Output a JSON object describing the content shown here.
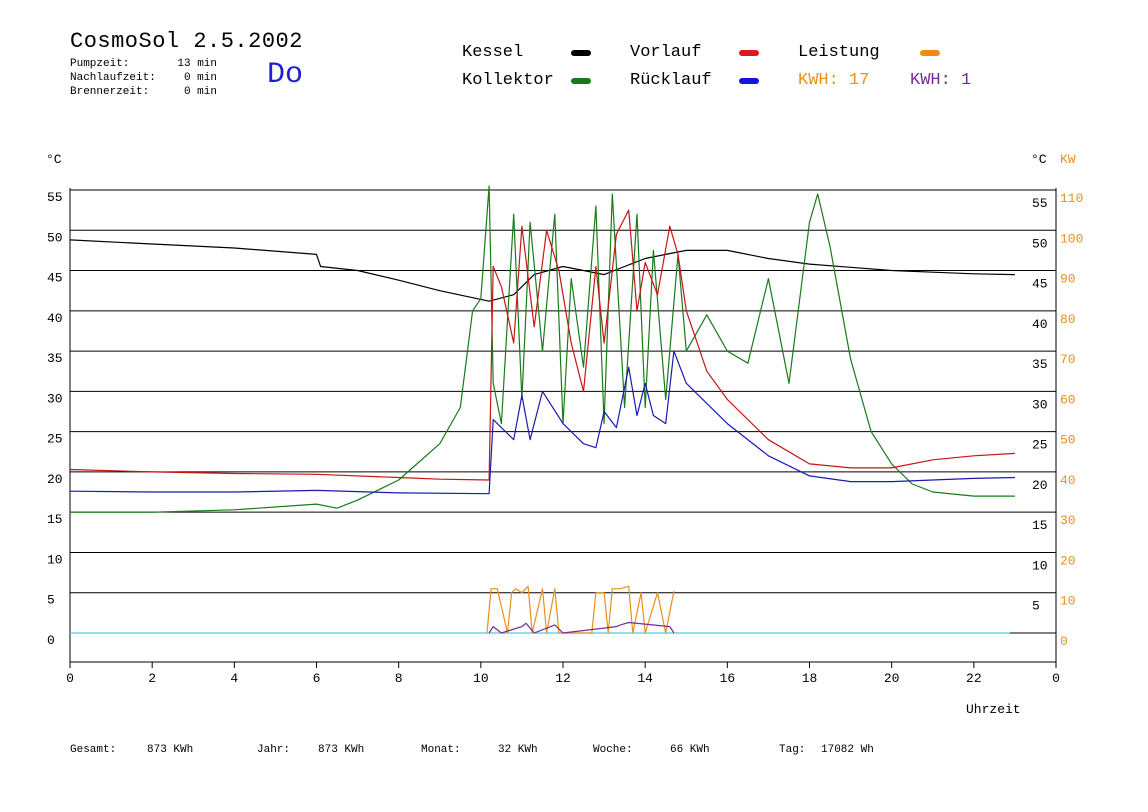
{
  "header": {
    "title": "CosmoSol 2.5.2002",
    "day": "Do",
    "stats": [
      {
        "label": "Pumpzeit:",
        "value": "13 min"
      },
      {
        "label": "Nachlaufzeit:",
        "value": "0 min"
      },
      {
        "label": "Brennerzeit:",
        "value": "0 min"
      }
    ]
  },
  "legend": {
    "kessel": "Kessel",
    "kollektor": "Kollektor",
    "vorlauf": "Vorlauf",
    "ruecklauf": "Rücklauf",
    "leistung": "Leistung",
    "kwh_orange": "KWH: 17",
    "kwh_purple": "KWH: 1"
  },
  "footer": {
    "gesamt_label": "Gesamt:",
    "gesamt_value": "873 KWh",
    "jahr_label": "Jahr:",
    "jahr_value": "873 KWh",
    "monat_label": "Monat:",
    "monat_value": "32 KWh",
    "woche_label": "Woche:",
    "woche_value": "66 KWh",
    "tag_label": "Tag:",
    "tag_value": "17082 Wh"
  },
  "colors": {
    "kessel": "#000000",
    "kollektor": "#1a7a1a",
    "vorlauf": "#c81414",
    "ruecklauf": "#1a1ab4",
    "leistung": "#e8901c",
    "kwh_purple": "#7a2a9a",
    "baseline": "#48d0d8"
  },
  "chart_data": {
    "type": "line",
    "xlabel": "Uhrzeit",
    "ylabel_left": "°C",
    "ylabel_right_1": "°C",
    "ylabel_right_2": "KW",
    "xlim": [
      0,
      24
    ],
    "ylim": [
      0,
      55
    ],
    "x_ticks": [
      "0",
      "2",
      "4",
      "6",
      "8",
      "10",
      "12",
      "14",
      "16",
      "18",
      "20",
      "22",
      "0"
    ],
    "y_ticks_left": [
      "0",
      "5",
      "10",
      "15",
      "20",
      "25",
      "30",
      "35",
      "40",
      "45",
      "50",
      "55"
    ],
    "y_ticks_right": [
      "5",
      "10",
      "15",
      "20",
      "25",
      "30",
      "35",
      "40",
      "45",
      "50",
      "55"
    ],
    "kw_ticks": [
      "0",
      "10",
      "20",
      "30",
      "40",
      "50",
      "60",
      "70",
      "80",
      "90",
      "100",
      "110"
    ],
    "grid": true,
    "series": [
      {
        "name": "Kessel",
        "x": [
          0,
          2,
          4,
          6,
          6.1,
          7,
          8,
          9,
          10.2,
          10.8,
          11.3,
          12,
          12.5,
          13,
          13.5,
          14,
          14.5,
          15,
          16,
          17,
          18,
          19,
          20,
          21,
          22,
          23
        ],
        "y": [
          48.8,
          48.3,
          47.8,
          47.0,
          45.5,
          45.0,
          43.8,
          42.5,
          41.2,
          42.0,
          44.5,
          45.5,
          45.0,
          44.5,
          45.5,
          46.5,
          47.0,
          47.5,
          47.5,
          46.5,
          45.8,
          45.4,
          45.0,
          44.8,
          44.6,
          44.5
        ]
      },
      {
        "name": "Kollektor",
        "x": [
          0,
          2,
          4,
          6,
          6.5,
          7,
          8,
          9,
          9.5,
          9.8,
          10.0,
          10.2,
          10.3,
          10.5,
          10.8,
          11.0,
          11.2,
          11.5,
          11.8,
          12.0,
          12.2,
          12.5,
          12.8,
          13.0,
          13.2,
          13.5,
          13.8,
          14.0,
          14.2,
          14.5,
          14.8,
          15.0,
          15.5,
          16,
          16.5,
          17,
          17.5,
          18,
          18.2,
          18.5,
          19,
          19.5,
          20,
          20.5,
          21,
          22,
          23
        ],
        "y": [
          15.0,
          15.0,
          15.3,
          16.0,
          15.5,
          16.5,
          19.0,
          23.5,
          28.0,
          40.0,
          41.5,
          55.5,
          31.0,
          26.0,
          52.0,
          29.0,
          51.0,
          35.0,
          52.0,
          26.0,
          44.0,
          33.0,
          53.0,
          26.0,
          54.5,
          28.0,
          52.0,
          28.0,
          47.5,
          29.0,
          47.0,
          35.0,
          39.5,
          35.0,
          33.5,
          44.0,
          31.0,
          51.0,
          54.5,
          48.0,
          34.0,
          25.0,
          21.0,
          18.5,
          17.5,
          17.0,
          17.0
        ]
      },
      {
        "name": "Vorlauf",
        "x": [
          0,
          2,
          4,
          6,
          8,
          9,
          10.2,
          10.3,
          10.5,
          10.8,
          11.0,
          11.3,
          11.6,
          11.9,
          12.2,
          12.5,
          12.8,
          13.0,
          13.3,
          13.6,
          13.8,
          14.0,
          14.3,
          14.6,
          14.8,
          15.0,
          15.5,
          16,
          17,
          18,
          19,
          20,
          21,
          22,
          23
        ],
        "y": [
          20.3,
          20.0,
          19.8,
          19.7,
          19.3,
          19.1,
          19.0,
          45.5,
          43.0,
          36.0,
          50.5,
          38.0,
          50.0,
          45.0,
          36.0,
          30.0,
          45.5,
          36.0,
          49.5,
          52.5,
          40.0,
          46.0,
          42.0,
          50.5,
          47.0,
          40.0,
          32.5,
          29.0,
          24.0,
          21.0,
          20.5,
          20.5,
          21.5,
          22.0,
          22.3
        ]
      },
      {
        "name": "Rücklauf",
        "x": [
          0,
          2,
          4,
          6,
          8,
          10.2,
          10.3,
          10.8,
          11.0,
          11.2,
          11.5,
          12.0,
          12.5,
          12.8,
          13.0,
          13.3,
          13.6,
          13.8,
          14.0,
          14.2,
          14.5,
          14.7,
          15,
          16,
          17,
          18,
          19,
          20,
          21,
          22,
          23
        ],
        "y": [
          17.6,
          17.5,
          17.5,
          17.7,
          17.4,
          17.3,
          26.5,
          24.0,
          29.5,
          24.0,
          30.0,
          26.0,
          23.5,
          23.0,
          27.5,
          25.5,
          33.0,
          27.0,
          31.0,
          27.0,
          26.0,
          35.0,
          31.0,
          26.0,
          22.0,
          19.5,
          18.8,
          18.8,
          19.0,
          19.2,
          19.3
        ]
      },
      {
        "name": "Leistung",
        "x": [
          10.15,
          10.25,
          10.4,
          10.65,
          10.75,
          10.85,
          11.0,
          11.15,
          11.25,
          11.5,
          11.6,
          11.8,
          11.9,
          12.7,
          12.8,
          13.0,
          13.1,
          13.2,
          13.4,
          13.6,
          13.7,
          13.9,
          14.0,
          14.3,
          14.5,
          14.7
        ],
        "y": [
          0,
          5.5,
          5.5,
          0,
          5.0,
          5.5,
          5.0,
          5.8,
          0,
          5.5,
          0,
          5.5,
          0,
          0,
          5.0,
          5.0,
          0,
          5.5,
          5.5,
          5.8,
          0,
          5.0,
          0,
          5.0,
          0,
          5.2
        ]
      },
      {
        "name": "KWH",
        "x": [
          10.2,
          10.3,
          10.5,
          11.0,
          11.1,
          11.3,
          11.7,
          11.8,
          12.0,
          13.3,
          13.4,
          13.6,
          14.6,
          14.7
        ],
        "y": [
          0,
          0.8,
          0,
          0.8,
          1.2,
          0,
          0.8,
          1.0,
          0,
          0.8,
          1.0,
          1.3,
          0.8,
          0
        ]
      }
    ]
  }
}
